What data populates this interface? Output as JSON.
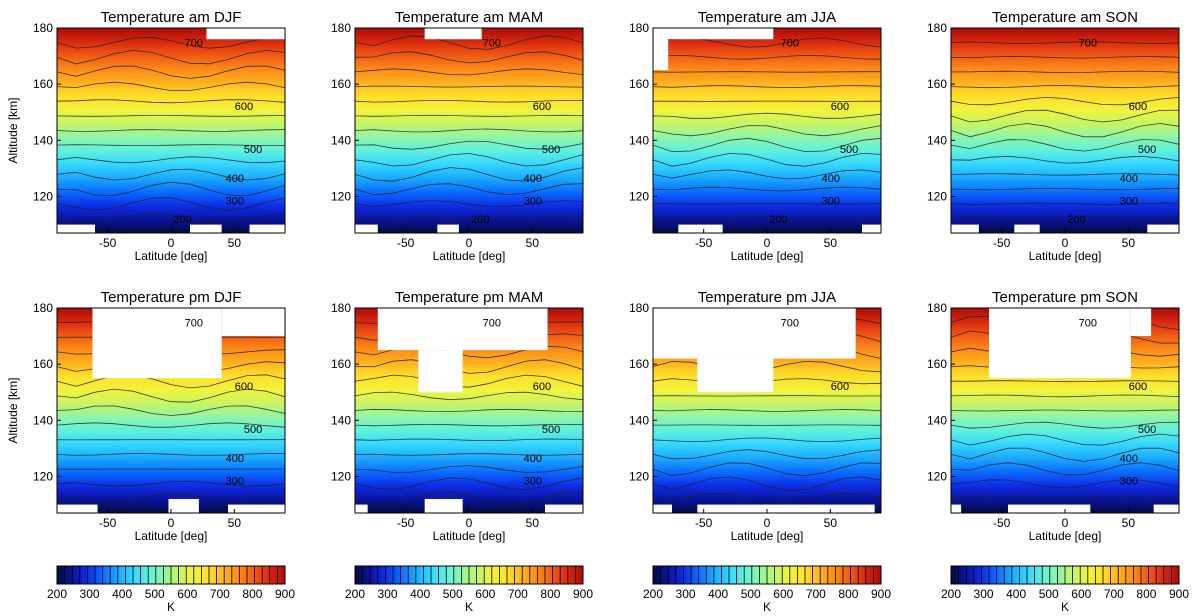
{
  "colors": {
    "scale": [
      "#050a3c",
      "#0a14a0",
      "#0f2de6",
      "#0a6cff",
      "#1aaaff",
      "#34d6ff",
      "#5ef0e0",
      "#8ef5a8",
      "#c6f566",
      "#f2f23c",
      "#fde02a",
      "#fdb21e",
      "#fb8a18",
      "#f05a14",
      "#d8280e",
      "#a80c0c"
    ],
    "contour": "#1e1e1e",
    "cutout": "#ffffff"
  },
  "chart_data": [
    {
      "type": "heatmap",
      "title": "Temperature am   DJF",
      "xlabel": "Latitude [deg]",
      "ylabel": "Altitude [km]",
      "xticks": [
        "-50",
        "0",
        "50"
      ],
      "yticks": [
        "120",
        "140",
        "160",
        "180"
      ],
      "xlim": [
        -90,
        90
      ],
      "ylim": [
        107,
        180
      ],
      "contour_labels": [
        "700",
        "600",
        "500",
        "400",
        "300",
        "200"
      ],
      "color_range": [
        200,
        900
      ],
      "gaps": [
        {
          "lat": [
            28,
            90
          ],
          "alt": [
            176,
            180
          ]
        },
        {
          "lat": [
            -90,
            -60
          ],
          "alt": [
            107,
            110
          ]
        },
        {
          "lat": [
            15,
            40
          ],
          "alt": [
            107,
            110
          ]
        },
        {
          "lat": [
            62,
            90
          ],
          "alt": [
            107,
            110
          ]
        }
      ]
    },
    {
      "type": "heatmap",
      "title": "Temperature am   MAM",
      "xlabel": "Latitude [deg]",
      "ylabel": "",
      "xticks": [
        "-50",
        "0",
        "50"
      ],
      "yticks": [
        "120",
        "140",
        "160",
        "180"
      ],
      "xlim": [
        -90,
        90
      ],
      "ylim": [
        107,
        180
      ],
      "contour_labels": [
        "700",
        "600",
        "500",
        "400",
        "300",
        "200"
      ],
      "color_range": [
        200,
        900
      ],
      "gaps": [
        {
          "lat": [
            -35,
            10
          ],
          "alt": [
            176,
            180
          ]
        },
        {
          "lat": [
            -90,
            -72
          ],
          "alt": [
            107,
            110
          ]
        },
        {
          "lat": [
            -25,
            -8
          ],
          "alt": [
            107,
            110
          ]
        }
      ]
    },
    {
      "type": "heatmap",
      "title": "Temperature am   JJA",
      "xlabel": "Latitude [deg]",
      "ylabel": "",
      "xticks": [
        "-50",
        "0",
        "50"
      ],
      "yticks": [
        "120",
        "140",
        "160",
        "180"
      ],
      "xlim": [
        -90,
        90
      ],
      "ylim": [
        107,
        180
      ],
      "contour_labels": [
        "700",
        "600",
        "500",
        "400",
        "300",
        "200"
      ],
      "color_range": [
        200,
        900
      ],
      "gaps": [
        {
          "lat": [
            -90,
            5
          ],
          "alt": [
            176,
            180
          ]
        },
        {
          "lat": [
            -90,
            -78
          ],
          "alt": [
            165,
            180
          ]
        },
        {
          "lat": [
            -70,
            -35
          ],
          "alt": [
            107,
            110
          ]
        },
        {
          "lat": [
            75,
            90
          ],
          "alt": [
            107,
            110
          ]
        }
      ]
    },
    {
      "type": "heatmap",
      "title": "Temperature am   SON",
      "xlabel": "Latitude [deg]",
      "ylabel": "",
      "xticks": [
        "-50",
        "0",
        "50"
      ],
      "yticks": [
        "120",
        "140",
        "160",
        "180"
      ],
      "xlim": [
        -90,
        90
      ],
      "ylim": [
        107,
        180
      ],
      "contour_labels": [
        "700",
        "600",
        "500",
        "400",
        "300",
        "200"
      ],
      "color_range": [
        200,
        900
      ],
      "gaps": [
        {
          "lat": [
            -90,
            -68
          ],
          "alt": [
            107,
            110
          ]
        },
        {
          "lat": [
            -40,
            -20
          ],
          "alt": [
            107,
            110
          ]
        },
        {
          "lat": [
            65,
            90
          ],
          "alt": [
            107,
            110
          ]
        }
      ]
    },
    {
      "type": "heatmap",
      "title": "Temperature pm   DJF",
      "xlabel": "Latitude [deg]",
      "ylabel": "Altitude [km]",
      "xticks": [
        "-50",
        "0",
        "50"
      ],
      "yticks": [
        "120",
        "140",
        "160",
        "180"
      ],
      "xlim": [
        -90,
        90
      ],
      "ylim": [
        107,
        180
      ],
      "contour_labels": [
        "700",
        "600",
        "500",
        "400",
        "300"
      ],
      "color_range": [
        200,
        900
      ],
      "gaps": [
        {
          "lat": [
            -62,
            40
          ],
          "alt": [
            155,
            180
          ]
        },
        {
          "lat": [
            40,
            90
          ],
          "alt": [
            170,
            180
          ]
        },
        {
          "lat": [
            -90,
            -58
          ],
          "alt": [
            107,
            110
          ]
        },
        {
          "lat": [
            -2,
            22
          ],
          "alt": [
            107,
            112
          ]
        },
        {
          "lat": [
            45,
            90
          ],
          "alt": [
            107,
            110
          ]
        }
      ]
    },
    {
      "type": "heatmap",
      "title": "Temperature pm   MAM",
      "xlabel": "Latitude [deg]",
      "ylabel": "",
      "xticks": [
        "-50",
        "0",
        "50"
      ],
      "yticks": [
        "120",
        "140",
        "160",
        "180"
      ],
      "xlim": [
        -90,
        90
      ],
      "ylim": [
        107,
        180
      ],
      "contour_labels": [
        "700",
        "600",
        "500",
        "400",
        "300"
      ],
      "color_range": [
        200,
        900
      ],
      "gaps": [
        {
          "lat": [
            -72,
            62
          ],
          "alt": [
            165,
            180
          ]
        },
        {
          "lat": [
            -40,
            -5
          ],
          "alt": [
            150,
            165
          ]
        },
        {
          "lat": [
            -90,
            -80
          ],
          "alt": [
            107,
            110
          ]
        },
        {
          "lat": [
            -35,
            -5
          ],
          "alt": [
            107,
            112
          ]
        },
        {
          "lat": [
            60,
            90
          ],
          "alt": [
            107,
            110
          ]
        }
      ]
    },
    {
      "type": "heatmap",
      "title": "Temperature pm   JJA",
      "xlabel": "Latitude [deg]",
      "ylabel": "",
      "xticks": [
        "-50",
        "0",
        "50"
      ],
      "yticks": [
        "120",
        "140",
        "160",
        "180"
      ],
      "xlim": [
        -90,
        90
      ],
      "ylim": [
        107,
        180
      ],
      "contour_labels": [
        "700",
        "600"
      ],
      "color_range": [
        200,
        900
      ],
      "gaps": [
        {
          "lat": [
            -90,
            70
          ],
          "alt": [
            162,
            180
          ]
        },
        {
          "lat": [
            -55,
            5
          ],
          "alt": [
            150,
            162
          ]
        },
        {
          "lat": [
            -90,
            -75
          ],
          "alt": [
            107,
            110
          ]
        },
        {
          "lat": [
            -55,
            85
          ],
          "alt": [
            107,
            110
          ]
        }
      ]
    },
    {
      "type": "heatmap",
      "title": "Temperature pm   SON",
      "xlabel": "Latitude [deg]",
      "ylabel": "",
      "xticks": [
        "-50",
        "0",
        "50"
      ],
      "yticks": [
        "120",
        "140",
        "160",
        "180"
      ],
      "xlim": [
        -90,
        90
      ],
      "ylim": [
        107,
        180
      ],
      "contour_labels": [
        "700",
        "600",
        "500",
        "400",
        "300"
      ],
      "color_range": [
        200,
        900
      ],
      "gaps": [
        {
          "lat": [
            -60,
            52
          ],
          "alt": [
            155,
            180
          ]
        },
        {
          "lat": [
            52,
            68
          ],
          "alt": [
            170,
            180
          ]
        },
        {
          "lat": [
            -90,
            -82
          ],
          "alt": [
            107,
            110
          ]
        },
        {
          "lat": [
            -45,
            20
          ],
          "alt": [
            107,
            110
          ]
        },
        {
          "lat": [
            70,
            90
          ],
          "alt": [
            107,
            110
          ]
        }
      ]
    }
  ],
  "colorbars": [
    {
      "ticks": [
        "200",
        "300",
        "400",
        "500",
        "600",
        "700",
        "800",
        "900"
      ],
      "label": "K",
      "range": [
        200,
        900
      ]
    },
    {
      "ticks": [
        "200",
        "300",
        "400",
        "500",
        "600",
        "700",
        "800",
        "900"
      ],
      "label": "K",
      "range": [
        200,
        900
      ]
    },
    {
      "ticks": [
        "200",
        "300",
        "400",
        "500",
        "600",
        "700",
        "800",
        "900"
      ],
      "label": "K",
      "range": [
        200,
        900
      ]
    },
    {
      "ticks": [
        "200",
        "300",
        "400",
        "500",
        "600",
        "700",
        "800",
        "900"
      ],
      "label": "K",
      "range": [
        200,
        900
      ]
    }
  ]
}
